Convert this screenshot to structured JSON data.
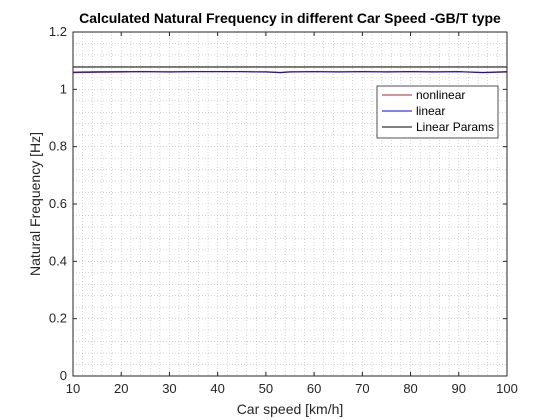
{
  "chart_data": {
    "type": "line",
    "title": "Calculated Natural Frequency in different Car Speed -GB/T type",
    "xlabel": "Car speed [km/h]",
    "ylabel": "Natural Frequency [Hz]",
    "xlim": [
      10,
      100
    ],
    "ylim": [
      0,
      1.2
    ],
    "xticks": [
      "10",
      "20",
      "30",
      "40",
      "50",
      "60",
      "70",
      "80",
      "90",
      "100"
    ],
    "yticks": [
      "0",
      "0.2",
      "0.4",
      "0.6",
      "0.8",
      "1",
      "1.2"
    ],
    "grid": "minor dotted",
    "legend_position": "top-right",
    "series": [
      {
        "name": "nonlinear",
        "color": "#a52a2a",
        "x": [
          10,
          15,
          20,
          25,
          30,
          35,
          40,
          45,
          50,
          53,
          55,
          60,
          65,
          70,
          75,
          80,
          85,
          90,
          95,
          100
        ],
        "y": [
          1.058,
          1.059,
          1.06,
          1.061,
          1.06,
          1.061,
          1.061,
          1.061,
          1.06,
          1.058,
          1.06,
          1.061,
          1.06,
          1.061,
          1.06,
          1.061,
          1.06,
          1.061,
          1.058,
          1.06
        ]
      },
      {
        "name": "linear",
        "color": "#0000ff",
        "x": [
          10,
          15,
          20,
          25,
          30,
          35,
          40,
          45,
          50,
          53,
          55,
          60,
          65,
          70,
          75,
          80,
          85,
          90,
          95,
          100
        ],
        "y": [
          1.06,
          1.061,
          1.062,
          1.062,
          1.061,
          1.062,
          1.062,
          1.062,
          1.061,
          1.059,
          1.061,
          1.062,
          1.061,
          1.062,
          1.061,
          1.062,
          1.061,
          1.062,
          1.059,
          1.062
        ]
      },
      {
        "name": "Linear Params",
        "color": "#000000",
        "x": [
          10,
          100
        ],
        "y": [
          1.078,
          1.078
        ]
      }
    ]
  }
}
